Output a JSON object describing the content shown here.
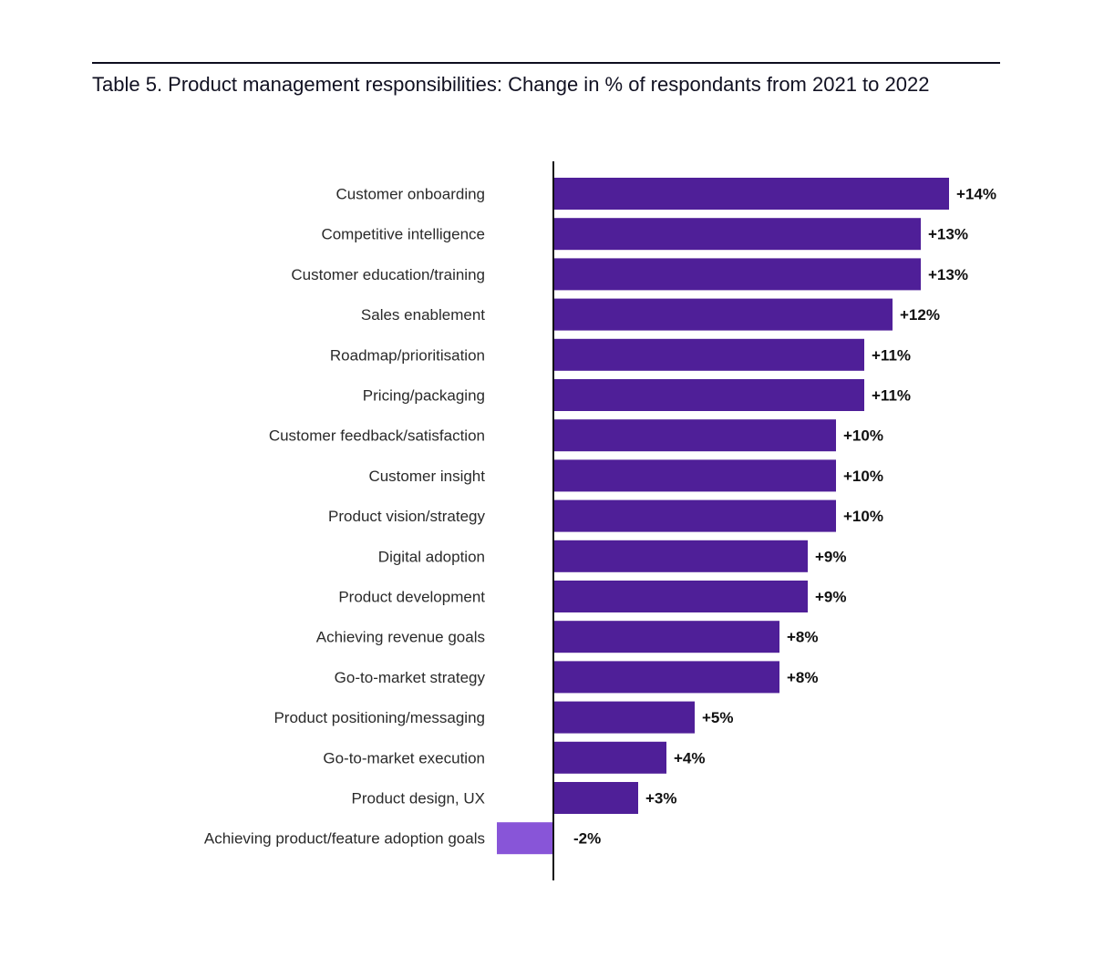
{
  "chart_data": {
    "type": "bar",
    "orientation": "horizontal",
    "title": "Table 5. Product management responsibilities: Change in % of respondants from 2021 to 2022",
    "xlabel": "",
    "ylabel": "",
    "grid": false,
    "unit": "%",
    "categories": [
      "Customer onboarding",
      "Competitive intelligence",
      "Customer education/training",
      "Sales enablement",
      "Roadmap/prioritisation",
      "Pricing/packaging",
      "Customer feedback/satisfaction",
      "Customer insight",
      "Product vision/strategy",
      "Digital adoption",
      "Product development",
      "Achieving revenue goals",
      "Go-to-market strategy",
      "Product positioning/messaging",
      "Go-to-market execution",
      "Product design, UX",
      "Achieving product/feature adoption goals"
    ],
    "values": [
      14,
      13,
      13,
      12,
      11,
      11,
      10,
      10,
      10,
      9,
      9,
      8,
      8,
      5,
      4,
      3,
      -2
    ],
    "labels": [
      "+14%",
      "+13%",
      "+13%",
      "+12%",
      "+11%",
      "+11%",
      "+10%",
      "+10%",
      "+10%",
      "+9%",
      "+9%",
      "+8%",
      "+8%",
      "+5%",
      "+4%",
      "+3%",
      "-2%"
    ],
    "colors": {
      "positive": "#4f1f98",
      "negative": "#8855d8",
      "axis": "#111111"
    }
  }
}
